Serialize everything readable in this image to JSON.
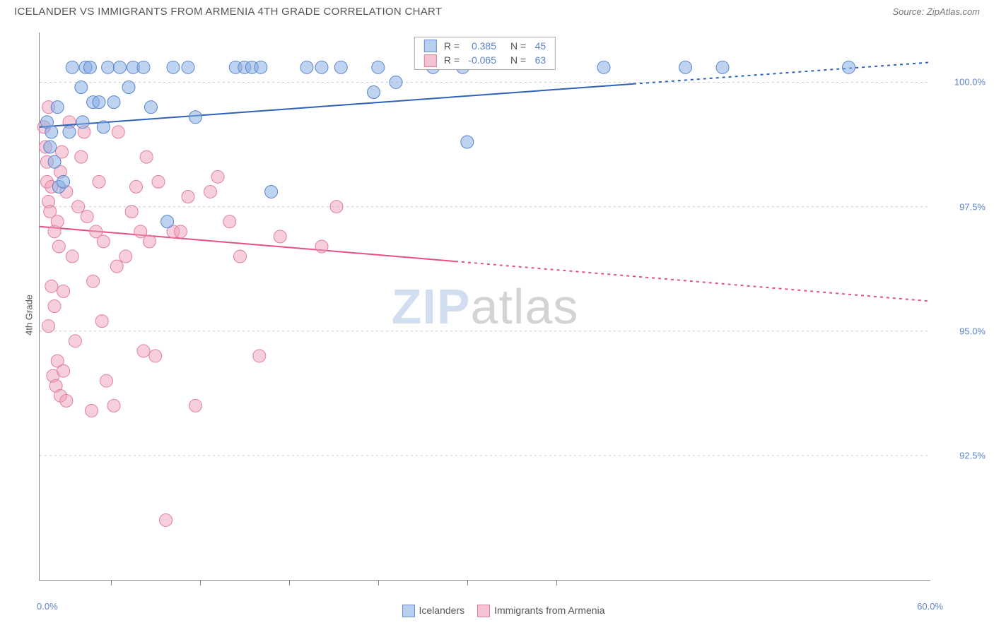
{
  "title": "ICELANDER VS IMMIGRANTS FROM ARMENIA 4TH GRADE CORRELATION CHART",
  "source": "Source: ZipAtlas.com",
  "ylabel": "4th Grade",
  "watermark": {
    "part1": "ZIP",
    "part2": "atlas"
  },
  "axes": {
    "xlim": [
      0,
      60
    ],
    "ylim": [
      90,
      101
    ],
    "x_domain_label_start": "0.0%",
    "x_domain_label_end": "60.0%",
    "x_tick_positions_pct": [
      8,
      18,
      28,
      38,
      48,
      58
    ],
    "y_ticks": [
      {
        "v": 100.0,
        "label": "100.0%"
      },
      {
        "v": 97.5,
        "label": "97.5%"
      },
      {
        "v": 95.0,
        "label": "95.0%"
      },
      {
        "v": 92.5,
        "label": "92.5%"
      }
    ],
    "grid_color": "#cccccc",
    "grid_dash": "3,4"
  },
  "legend_rn": {
    "series": [
      {
        "color_fill": "#b9cfef",
        "color_stroke": "#6a8fce",
        "R_label": "R =",
        "R": "0.385",
        "N_label": "N =",
        "N": "45",
        "value_color": "#5b84ce"
      },
      {
        "color_fill": "#f6c3d2",
        "color_stroke": "#e07fa0",
        "R_label": "R =",
        "R": "-0.065",
        "N_label": "N =",
        "N": "63",
        "value_color": "#5b84ce"
      }
    ]
  },
  "bottom_legend": [
    {
      "fill": "#b9cfef",
      "stroke": "#6a8fce",
      "label": "Icelanders"
    },
    {
      "fill": "#f6c3d2",
      "stroke": "#e07fa0",
      "label": "Immigrants from Armenia"
    }
  ],
  "series_blue": {
    "marker_fill": "rgba(135,175,225,0.55)",
    "marker_stroke": "#5b84ce",
    "marker_r": 9,
    "line_color": "#2e62b8",
    "line_width": 2,
    "trend": {
      "x0": 0,
      "y0": 99.1,
      "x1": 60,
      "y1": 100.4,
      "solid_until_x": 40
    },
    "points": [
      [
        0.5,
        99.2
      ],
      [
        0.7,
        98.7
      ],
      [
        0.8,
        99.0
      ],
      [
        1.0,
        98.4
      ],
      [
        1.3,
        97.9
      ],
      [
        1.2,
        99.5
      ],
      [
        1.6,
        98.0
      ],
      [
        2.0,
        99.0
      ],
      [
        2.2,
        100.3
      ],
      [
        2.8,
        99.9
      ],
      [
        2.9,
        99.2
      ],
      [
        3.1,
        100.3
      ],
      [
        3.4,
        100.3
      ],
      [
        3.6,
        99.6
      ],
      [
        4.0,
        99.6
      ],
      [
        4.3,
        99.1
      ],
      [
        4.6,
        100.3
      ],
      [
        5.0,
        99.6
      ],
      [
        5.4,
        100.3
      ],
      [
        6.0,
        99.9
      ],
      [
        6.3,
        100.3
      ],
      [
        7.0,
        100.3
      ],
      [
        7.5,
        99.5
      ],
      [
        8.6,
        97.2
      ],
      [
        9.0,
        100.3
      ],
      [
        10.0,
        100.3
      ],
      [
        10.5,
        99.3
      ],
      [
        13.2,
        100.3
      ],
      [
        13.8,
        100.3
      ],
      [
        14.3,
        100.3
      ],
      [
        14.9,
        100.3
      ],
      [
        15.6,
        97.8
      ],
      [
        18.0,
        100.3
      ],
      [
        19.0,
        100.3
      ],
      [
        20.3,
        100.3
      ],
      [
        22.5,
        99.8
      ],
      [
        22.8,
        100.3
      ],
      [
        24.0,
        100.0
      ],
      [
        26.5,
        100.3
      ],
      [
        28.8,
        98.8
      ],
      [
        28.5,
        100.3
      ],
      [
        38.0,
        100.3
      ],
      [
        43.5,
        100.3
      ],
      [
        46.0,
        100.3
      ],
      [
        54.5,
        100.3
      ]
    ]
  },
  "series_pink": {
    "marker_fill": "rgba(240,160,185,0.5)",
    "marker_stroke": "#e07fa0",
    "marker_r": 9,
    "line_color": "#e5517f",
    "line_width": 2,
    "line_dash": "4,5",
    "trend": {
      "x0": 0,
      "y0": 97.1,
      "x1": 60,
      "y1": 95.6,
      "solid_until_x": 28
    },
    "points": [
      [
        0.3,
        99.1
      ],
      [
        0.4,
        98.7
      ],
      [
        0.5,
        98.4
      ],
      [
        0.5,
        98.0
      ],
      [
        0.6,
        97.6
      ],
      [
        0.6,
        95.1
      ],
      [
        0.6,
        99.5
      ],
      [
        0.7,
        97.4
      ],
      [
        0.8,
        97.9
      ],
      [
        0.8,
        95.9
      ],
      [
        0.9,
        94.1
      ],
      [
        1.0,
        97.0
      ],
      [
        1.0,
        95.5
      ],
      [
        1.1,
        93.9
      ],
      [
        1.2,
        97.2
      ],
      [
        1.2,
        94.4
      ],
      [
        1.3,
        96.7
      ],
      [
        1.4,
        98.2
      ],
      [
        1.4,
        93.7
      ],
      [
        1.5,
        98.6
      ],
      [
        1.6,
        95.8
      ],
      [
        1.6,
        94.2
      ],
      [
        1.8,
        97.8
      ],
      [
        1.8,
        93.6
      ],
      [
        2.0,
        99.2
      ],
      [
        2.2,
        96.5
      ],
      [
        2.4,
        94.8
      ],
      [
        2.6,
        97.5
      ],
      [
        2.8,
        98.5
      ],
      [
        3.0,
        99.0
      ],
      [
        3.2,
        97.3
      ],
      [
        3.5,
        93.4
      ],
      [
        3.6,
        96.0
      ],
      [
        3.8,
        97.0
      ],
      [
        4.0,
        98.0
      ],
      [
        4.2,
        95.2
      ],
      [
        4.3,
        96.8
      ],
      [
        4.5,
        94.0
      ],
      [
        5.0,
        93.5
      ],
      [
        5.2,
        96.3
      ],
      [
        5.3,
        99.0
      ],
      [
        5.8,
        96.5
      ],
      [
        6.2,
        97.4
      ],
      [
        6.5,
        97.9
      ],
      [
        6.8,
        97.0
      ],
      [
        7.0,
        94.6
      ],
      [
        7.2,
        98.5
      ],
      [
        7.4,
        96.8
      ],
      [
        7.8,
        94.5
      ],
      [
        8.0,
        98.0
      ],
      [
        8.5,
        91.2
      ],
      [
        9.0,
        97.0
      ],
      [
        9.5,
        97.0
      ],
      [
        10.0,
        97.7
      ],
      [
        10.5,
        93.5
      ],
      [
        11.5,
        97.8
      ],
      [
        12.0,
        98.1
      ],
      [
        12.8,
        97.2
      ],
      [
        13.5,
        96.5
      ],
      [
        14.8,
        94.5
      ],
      [
        16.2,
        96.9
      ],
      [
        19.0,
        96.7
      ],
      [
        20.0,
        97.5
      ]
    ]
  }
}
